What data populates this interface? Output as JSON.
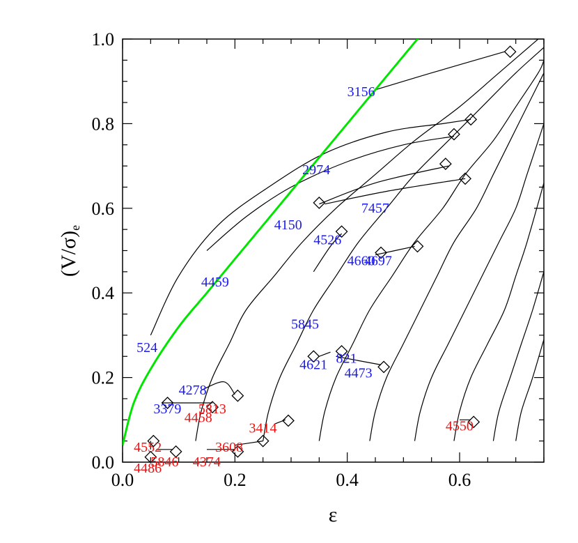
{
  "chart_data": {
    "type": "scatter",
    "title": "",
    "xlabel": "ε",
    "ylabel_main": "(V/σ)",
    "ylabel_sub": "e",
    "xlim": [
      0,
      0.75
    ],
    "ylim": [
      0,
      1.0
    ],
    "x_ticks": [
      "0.0",
      "0.2",
      "0.4",
      "0.6"
    ],
    "x_tick_values": [
      0,
      0.2,
      0.4,
      0.6
    ],
    "y_ticks": [
      "0.0",
      "0.2",
      "0.4",
      "0.6",
      "0.8",
      "1.0"
    ],
    "y_tick_values": [
      0,
      0.2,
      0.4,
      0.6,
      0.8,
      1.0
    ],
    "x_minor_step": 0.05,
    "y_minor_step": 0.05,
    "grid": false,
    "colors": {
      "blue": "#1a1aee",
      "red": "#ee1111",
      "green": "#00e600",
      "curve": "#000000"
    },
    "isotropic_line": [
      [
        0.0,
        0.04
      ],
      [
        0.02,
        0.14
      ],
      [
        0.05,
        0.22
      ],
      [
        0.1,
        0.32
      ],
      [
        0.15,
        0.4
      ],
      [
        0.2,
        0.48
      ],
      [
        0.25,
        0.56
      ],
      [
        0.3,
        0.64
      ],
      [
        0.35,
        0.72
      ],
      [
        0.4,
        0.8
      ],
      [
        0.45,
        0.88
      ],
      [
        0.5,
        0.96
      ],
      [
        0.55,
        1.04
      ],
      [
        0.6,
        1.12
      ]
    ],
    "edge_on_curves": [
      [
        [
          0.13,
          0.05
        ],
        [
          0.14,
          0.12
        ],
        [
          0.16,
          0.2
        ],
        [
          0.19,
          0.28
        ],
        [
          0.22,
          0.36
        ],
        [
          0.27,
          0.44
        ],
        [
          0.32,
          0.52
        ],
        [
          0.38,
          0.6
        ],
        [
          0.45,
          0.68
        ],
        [
          0.52,
          0.76
        ],
        [
          0.6,
          0.84
        ],
        [
          0.67,
          0.92
        ],
        [
          0.74,
          1.0
        ]
      ],
      [
        [
          0.25,
          0.05
        ],
        [
          0.26,
          0.12
        ],
        [
          0.28,
          0.2
        ],
        [
          0.31,
          0.28
        ],
        [
          0.34,
          0.36
        ],
        [
          0.38,
          0.44
        ],
        [
          0.42,
          0.52
        ],
        [
          0.47,
          0.6
        ],
        [
          0.52,
          0.68
        ],
        [
          0.58,
          0.76
        ],
        [
          0.64,
          0.84
        ],
        [
          0.7,
          0.92
        ],
        [
          0.75,
          0.98
        ]
      ],
      [
        [
          0.35,
          0.05
        ],
        [
          0.36,
          0.12
        ],
        [
          0.38,
          0.2
        ],
        [
          0.41,
          0.28
        ],
        [
          0.44,
          0.36
        ],
        [
          0.48,
          0.44
        ],
        [
          0.52,
          0.52
        ],
        [
          0.57,
          0.6
        ],
        [
          0.61,
          0.68
        ],
        [
          0.66,
          0.76
        ],
        [
          0.7,
          0.84
        ],
        [
          0.74,
          0.92
        ],
        [
          0.75,
          0.95
        ]
      ],
      [
        [
          0.44,
          0.05
        ],
        [
          0.45,
          0.12
        ],
        [
          0.47,
          0.2
        ],
        [
          0.5,
          0.28
        ],
        [
          0.53,
          0.36
        ],
        [
          0.56,
          0.44
        ],
        [
          0.59,
          0.52
        ],
        [
          0.63,
          0.6
        ],
        [
          0.66,
          0.68
        ],
        [
          0.69,
          0.76
        ],
        [
          0.72,
          0.84
        ],
        [
          0.75,
          0.92
        ]
      ],
      [
        [
          0.52,
          0.05
        ],
        [
          0.53,
          0.12
        ],
        [
          0.55,
          0.2
        ],
        [
          0.58,
          0.28
        ],
        [
          0.61,
          0.36
        ],
        [
          0.64,
          0.44
        ],
        [
          0.67,
          0.52
        ],
        [
          0.7,
          0.6
        ],
        [
          0.72,
          0.68
        ],
        [
          0.75,
          0.8
        ]
      ],
      [
        [
          0.59,
          0.05
        ],
        [
          0.6,
          0.12
        ],
        [
          0.62,
          0.2
        ],
        [
          0.65,
          0.28
        ],
        [
          0.68,
          0.36
        ],
        [
          0.7,
          0.44
        ],
        [
          0.72,
          0.52
        ],
        [
          0.75,
          0.66
        ]
      ],
      [
        [
          0.66,
          0.05
        ],
        [
          0.67,
          0.12
        ],
        [
          0.69,
          0.2
        ],
        [
          0.71,
          0.28
        ],
        [
          0.73,
          0.36
        ],
        [
          0.75,
          0.45
        ]
      ],
      [
        [
          0.7,
          0.05
        ],
        [
          0.71,
          0.12
        ],
        [
          0.73,
          0.2
        ],
        [
          0.75,
          0.29
        ]
      ]
    ],
    "galaxy_curves": [
      [
        [
          0.05,
          0.3
        ],
        [
          0.1,
          0.44
        ],
        [
          0.17,
          0.56
        ],
        [
          0.26,
          0.65
        ],
        [
          0.36,
          0.73
        ],
        [
          0.47,
          0.78
        ],
        [
          0.57,
          0.8
        ],
        [
          0.62,
          0.81
        ]
      ],
      [
        [
          0.15,
          0.5
        ],
        [
          0.22,
          0.58
        ],
        [
          0.3,
          0.65
        ],
        [
          0.4,
          0.71
        ],
        [
          0.5,
          0.75
        ],
        [
          0.59,
          0.77
        ]
      ],
      [
        [
          0.35,
          0.61
        ],
        [
          0.45,
          0.66
        ],
        [
          0.58,
          0.7
        ]
      ],
      [
        [
          0.36,
          0.61
        ],
        [
          0.47,
          0.64
        ],
        [
          0.61,
          0.67
        ]
      ],
      [
        [
          0.45,
          0.88
        ],
        [
          0.55,
          0.92
        ],
        [
          0.68,
          0.97
        ]
      ],
      [
        [
          0.34,
          0.45
        ],
        [
          0.37,
          0.51
        ],
        [
          0.39,
          0.54
        ]
      ],
      [
        [
          0.45,
          0.49
        ],
        [
          0.52,
          0.51
        ]
      ],
      [
        [
          0.38,
          0.25
        ],
        [
          0.46,
          0.23
        ]
      ],
      [
        [
          0.35,
          0.25
        ],
        [
          0.37,
          0.26
        ]
      ],
      [
        [
          0.14,
          0.17
        ],
        [
          0.18,
          0.19
        ],
        [
          0.2,
          0.16
        ]
      ],
      [
        [
          0.07,
          0.14
        ],
        [
          0.16,
          0.14
        ]
      ],
      [
        [
          0.27,
          0.09
        ],
        [
          0.29,
          0.1
        ]
      ],
      [
        [
          0.2,
          0.04
        ],
        [
          0.25,
          0.05
        ]
      ],
      [
        [
          0.15,
          0.03
        ],
        [
          0.2,
          0.03
        ]
      ],
      [
        [
          0.06,
          0.03
        ],
        [
          0.09,
          0.03
        ]
      ],
      [
        [
          0.05,
          0.03
        ],
        [
          0.05,
          0.05
        ]
      ],
      [
        [
          0.6,
          0.1
        ],
        [
          0.62,
          0.1
        ]
      ]
    ],
    "points": [
      {
        "label": "3156",
        "x": 0.69,
        "y": 0.97,
        "color": "blue",
        "lx": 0.4,
        "ly": 0.875
      },
      {
        "label": "2974",
        "x": 0.62,
        "y": 0.81,
        "color": "blue",
        "lx": 0.32,
        "ly": 0.69
      },
      {
        "label": "",
        "x": 0.59,
        "y": 0.775,
        "color": "blue",
        "lx": 0,
        "ly": 0
      },
      {
        "label": "",
        "x": 0.575,
        "y": 0.705,
        "color": "blue",
        "lx": 0,
        "ly": 0
      },
      {
        "label": "7457",
        "x": 0.61,
        "y": 0.67,
        "color": "blue",
        "lx": 0.425,
        "ly": 0.6
      },
      {
        "label": "4150",
        "x": 0.35,
        "y": 0.613,
        "color": "blue",
        "lx": 0.27,
        "ly": 0.56
      },
      {
        "label": "4526",
        "x": 0.39,
        "y": 0.545,
        "color": "blue",
        "lx": 0.34,
        "ly": 0.525
      },
      {
        "label": "4697",
        "x": 0.525,
        "y": 0.51,
        "color": "blue",
        "lx": 0.43,
        "ly": 0.475
      },
      {
        "label": "4660",
        "x": 0.46,
        "y": 0.495,
        "color": "blue",
        "lx": 0.4,
        "ly": 0.475
      },
      {
        "label": "4459",
        "x": 0.0,
        "y": 0.0,
        "color": "blue",
        "lx": 0.14,
        "ly": 0.425,
        "no_marker": true
      },
      {
        "label": "5845",
        "x": 0.0,
        "y": 0.0,
        "color": "blue",
        "lx": 0.3,
        "ly": 0.325,
        "no_marker": true
      },
      {
        "label": "524",
        "x": 0.0,
        "y": 0.0,
        "color": "blue",
        "lx": 0.025,
        "ly": 0.27,
        "no_marker": true
      },
      {
        "label": "821",
        "x": 0.39,
        "y": 0.262,
        "color": "blue",
        "lx": 0.38,
        "ly": 0.245
      },
      {
        "label": "4621",
        "x": 0.34,
        "y": 0.25,
        "color": "blue",
        "lx": 0.315,
        "ly": 0.23
      },
      {
        "label": "4473",
        "x": 0.465,
        "y": 0.225,
        "color": "blue",
        "lx": 0.395,
        "ly": 0.21
      },
      {
        "label": "4278",
        "x": 0.0,
        "y": 0.0,
        "color": "blue",
        "lx": 0.1,
        "ly": 0.17,
        "no_marker": true
      },
      {
        "label": "3379",
        "x": 0.08,
        "y": 0.14,
        "color": "blue",
        "lx": 0.055,
        "ly": 0.125
      },
      {
        "label": "5813",
        "x": 0.16,
        "y": 0.13,
        "color": "red",
        "lx": 0.135,
        "ly": 0.125
      },
      {
        "label": "4458",
        "x": 0.205,
        "y": 0.157,
        "color": "red",
        "lx": 0.11,
        "ly": 0.105
      },
      {
        "label": "3414",
        "x": 0.295,
        "y": 0.098,
        "color": "red",
        "lx": 0.225,
        "ly": 0.08
      },
      {
        "label": "3608",
        "x": 0.25,
        "y": 0.05,
        "color": "red",
        "lx": 0.165,
        "ly": 0.035
      },
      {
        "label": "4374",
        "x": 0.205,
        "y": 0.025,
        "color": "red",
        "lx": 0.125,
        "ly": 0.0
      },
      {
        "label": "4552",
        "x": 0.055,
        "y": 0.05,
        "color": "red",
        "lx": 0.02,
        "ly": 0.035
      },
      {
        "label": "5846",
        "x": 0.095,
        "y": 0.025,
        "color": "red",
        "lx": 0.05,
        "ly": 0.0
      },
      {
        "label": "4486",
        "x": 0.05,
        "y": 0.012,
        "color": "red",
        "lx": 0.02,
        "ly": -0.015
      },
      {
        "label": "4550",
        "x": 0.625,
        "y": 0.095,
        "color": "red",
        "lx": 0.575,
        "ly": 0.085
      }
    ]
  }
}
